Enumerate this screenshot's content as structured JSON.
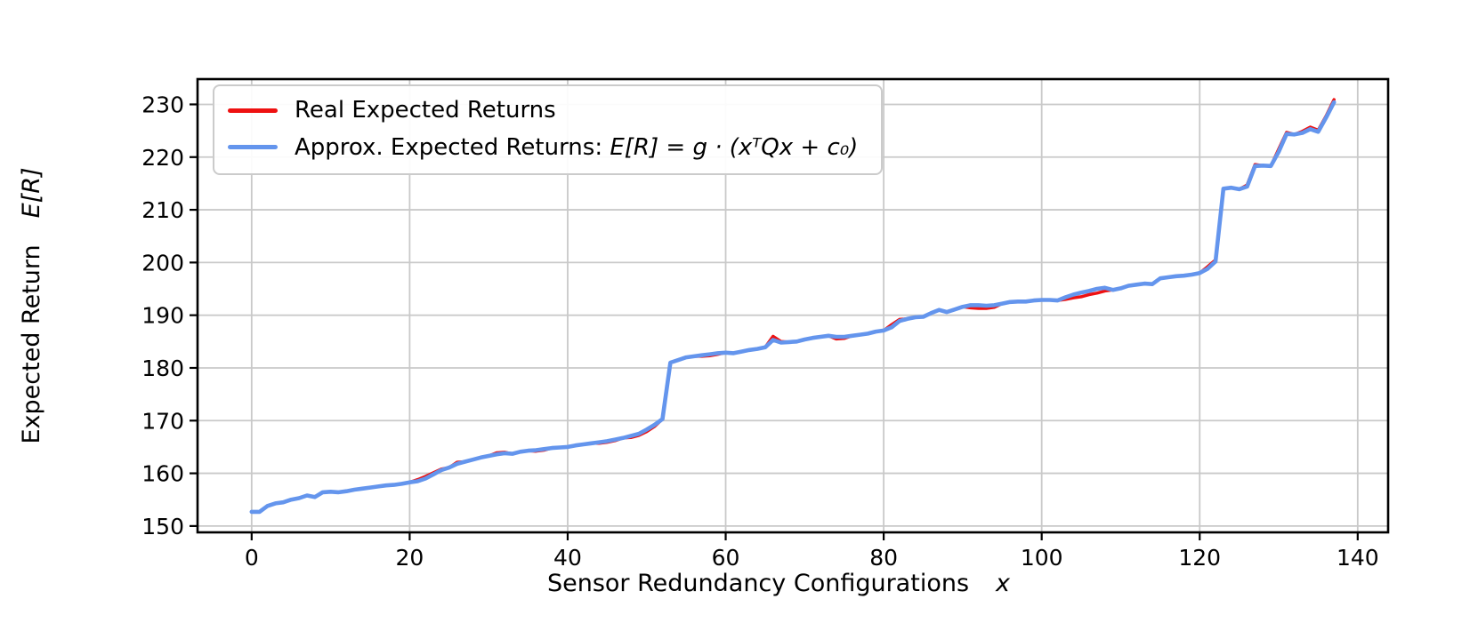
{
  "figure": {
    "xlabel_text": "Sensor Redundancy Configurations",
    "xlabel_math": "x",
    "ylabel_text": "Expected Return",
    "ylabel_math": "E[R]"
  },
  "legend": {
    "items": [
      {
        "label": "Real Expected Returns",
        "color": "#ee1111"
      },
      {
        "prefix": "Approx. Expected Returns: ",
        "math": "E[R] = g · (xᵀQx + c₀)",
        "color": "#6495ed"
      }
    ]
  },
  "chart_data": {
    "type": "line",
    "title": "",
    "xlabel": "Sensor Redundancy Configurations x",
    "ylabel": "Expected Return E[R]",
    "x_ticks": [
      0,
      20,
      40,
      60,
      80,
      100,
      120,
      140
    ],
    "y_ticks": [
      150,
      160,
      170,
      180,
      190,
      200,
      210,
      220,
      230
    ],
    "xlim": [
      -6.85,
      143.85
    ],
    "ylim": [
      148.8,
      234.8
    ],
    "grid": true,
    "grid_color": "#c9c9c9",
    "legend_position": "upper-left",
    "x": [
      0,
      1,
      2,
      3,
      4,
      5,
      6,
      7,
      8,
      9,
      10,
      11,
      12,
      13,
      14,
      15,
      16,
      17,
      18,
      19,
      20,
      21,
      22,
      23,
      24,
      25,
      26,
      27,
      28,
      29,
      30,
      31,
      32,
      33,
      34,
      35,
      36,
      37,
      38,
      39,
      40,
      41,
      42,
      43,
      44,
      45,
      46,
      47,
      48,
      49,
      50,
      51,
      52,
      53,
      54,
      55,
      56,
      57,
      58,
      59,
      60,
      61,
      62,
      63,
      64,
      65,
      66,
      67,
      68,
      69,
      70,
      71,
      72,
      73,
      74,
      75,
      76,
      77,
      78,
      79,
      80,
      81,
      82,
      83,
      84,
      85,
      86,
      87,
      88,
      89,
      90,
      91,
      92,
      93,
      94,
      95,
      96,
      97,
      98,
      99,
      100,
      101,
      102,
      103,
      104,
      105,
      106,
      107,
      108,
      109,
      110,
      111,
      112,
      113,
      114,
      115,
      116,
      117,
      118,
      119,
      120,
      121,
      122,
      123,
      124,
      125,
      126,
      127,
      128,
      129,
      130,
      131,
      132,
      133,
      134,
      135,
      136,
      137
    ],
    "series": [
      {
        "name": "Real Expected Returns",
        "color": "#ee1111",
        "line_width": 3.5,
        "values": [
          152.7,
          152.7,
          153.8,
          154.3,
          154.5,
          155.0,
          155.3,
          155.8,
          155.5,
          156.4,
          156.5,
          156.4,
          156.6,
          156.9,
          157.1,
          157.3,
          157.5,
          157.7,
          157.8,
          158.0,
          158.3,
          158.8,
          159.4,
          160.1,
          160.8,
          161.1,
          162.1,
          162.2,
          162.6,
          163.0,
          163.3,
          163.9,
          164.0,
          163.7,
          164.1,
          164.3,
          164.2,
          164.4,
          164.8,
          164.9,
          165.0,
          165.3,
          165.5,
          165.7,
          165.7,
          165.9,
          166.2,
          166.7,
          166.8,
          167.2,
          167.9,
          168.9,
          170.3,
          181.0,
          181.5,
          182.0,
          182.2,
          182.2,
          182.3,
          182.6,
          182.9,
          182.8,
          183.1,
          183.4,
          183.6,
          183.9,
          186.0,
          185.0,
          184.9,
          185.0,
          185.4,
          185.7,
          185.9,
          186.1,
          185.5,
          185.6,
          186.1,
          186.3,
          186.5,
          186.9,
          187.1,
          188.2,
          189.2,
          189.3,
          189.6,
          189.7,
          190.4,
          191.0,
          190.6,
          191.1,
          191.6,
          191.4,
          191.3,
          191.3,
          191.5,
          192.2,
          192.5,
          192.6,
          192.6,
          192.8,
          192.9,
          192.9,
          192.8,
          193.0,
          193.3,
          193.5,
          193.9,
          194.2,
          194.6,
          194.8,
          195.1,
          195.6,
          195.8,
          196.0,
          195.9,
          197.0,
          197.2,
          197.4,
          197.5,
          197.7,
          198.0,
          199.2,
          200.5,
          214.0,
          214.2,
          213.9,
          214.7,
          218.6,
          218.4,
          218.3,
          221.5,
          224.7,
          224.3,
          224.9,
          225.7,
          225.1,
          227.8,
          230.9
        ]
      },
      {
        "name": "Approx. Expected Returns: E[R] = g · (xᵀQx + c₀)",
        "color": "#6495ed",
        "line_width": 4.6,
        "values": [
          152.7,
          152.7,
          153.8,
          154.3,
          154.5,
          155.0,
          155.3,
          155.8,
          155.5,
          156.4,
          156.5,
          156.4,
          156.6,
          156.9,
          157.1,
          157.3,
          157.5,
          157.7,
          157.8,
          158.0,
          158.3,
          158.5,
          159.0,
          159.8,
          160.6,
          161.1,
          161.8,
          162.2,
          162.6,
          163.0,
          163.3,
          163.6,
          163.8,
          163.7,
          164.1,
          164.3,
          164.4,
          164.6,
          164.8,
          164.9,
          165.0,
          165.3,
          165.5,
          165.7,
          165.9,
          166.1,
          166.4,
          166.7,
          167.1,
          167.5,
          168.3,
          169.2,
          170.3,
          181.0,
          181.5,
          182.0,
          182.2,
          182.4,
          182.6,
          182.8,
          182.9,
          182.8,
          183.1,
          183.4,
          183.6,
          183.9,
          185.3,
          184.8,
          184.9,
          185.0,
          185.4,
          185.7,
          185.9,
          186.1,
          185.9,
          185.9,
          186.1,
          186.3,
          186.5,
          186.9,
          187.1,
          187.7,
          188.9,
          189.3,
          189.6,
          189.7,
          190.4,
          191.0,
          190.6,
          191.1,
          191.6,
          191.9,
          191.9,
          191.8,
          191.9,
          192.2,
          192.5,
          192.6,
          192.6,
          192.8,
          192.9,
          192.9,
          192.8,
          193.4,
          193.9,
          194.3,
          194.6,
          195.0,
          195.2,
          194.8,
          195.1,
          195.6,
          195.8,
          196.0,
          195.9,
          197.0,
          197.2,
          197.4,
          197.5,
          197.7,
          198.0,
          198.8,
          200.2,
          214.0,
          214.2,
          213.9,
          214.4,
          218.3,
          218.4,
          218.3,
          221.0,
          224.4,
          224.3,
          224.6,
          225.3,
          224.8,
          227.5,
          230.4
        ]
      }
    ]
  }
}
